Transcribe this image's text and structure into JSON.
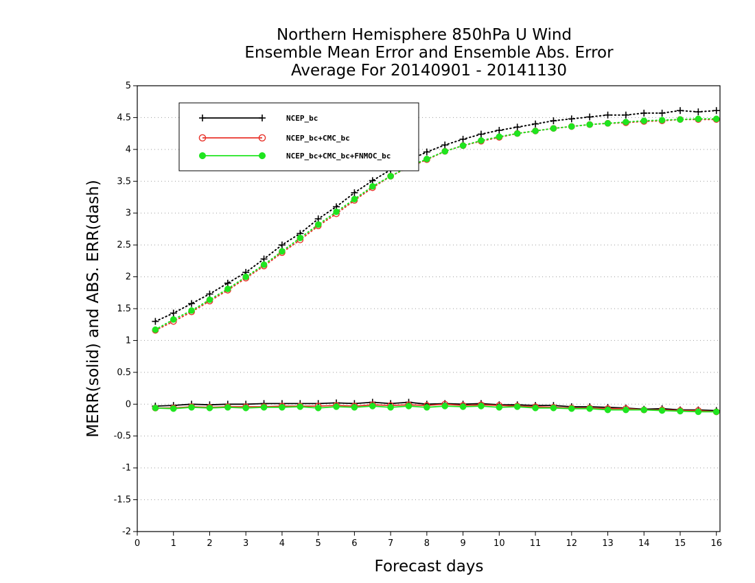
{
  "chart_data": {
    "type": "line",
    "title": [
      "Northern Hemisphere 850hPa U Wind",
      "Ensemble Mean Error and Ensemble Abs. Error",
      "Average For 20140901 - 20141130"
    ],
    "xlabel": "Forecast days",
    "ylabel": "MERR(solid) and ABS. ERR(dash)",
    "xlim": [
      0,
      16.1
    ],
    "ylim": [
      -2,
      5
    ],
    "xticks": [
      0,
      1,
      2,
      3,
      4,
      5,
      6,
      7,
      8,
      9,
      10,
      11,
      12,
      13,
      14,
      15,
      16
    ],
    "yticks": [
      -2,
      -1.5,
      -1,
      -0.5,
      0,
      0.5,
      1,
      1.5,
      2,
      2.5,
      3,
      3.5,
      4,
      4.5,
      5
    ],
    "ytick_labels": [
      "-2",
      "-1.5",
      "-1",
      "-0.5",
      "0",
      "0.5",
      "1",
      "1.5",
      "2",
      "2.5",
      "3",
      "3.5",
      "4",
      "4.5",
      "5"
    ],
    "grid": "horizontal dotted",
    "legend_placement": "top-left",
    "x": [
      0.5,
      1.0,
      1.5,
      2.0,
      2.5,
      3.0,
      3.5,
      4.0,
      4.5,
      5.0,
      5.5,
      6.0,
      6.5,
      7.0,
      7.5,
      8.0,
      8.5,
      9.0,
      9.5,
      10.0,
      10.5,
      11.0,
      11.5,
      12.0,
      12.5,
      13.0,
      13.5,
      14.0,
      14.5,
      15.0,
      15.5,
      16.0
    ],
    "series": [
      {
        "name": "NCEP_bc",
        "color": "#000000",
        "marker": "plus",
        "abs_err": [
          1.3,
          1.43,
          1.58,
          1.73,
          1.9,
          2.07,
          2.28,
          2.5,
          2.68,
          2.91,
          3.1,
          3.32,
          3.51,
          3.68,
          3.83,
          3.96,
          4.07,
          4.16,
          4.24,
          4.3,
          4.35,
          4.4,
          4.45,
          4.48,
          4.51,
          4.54,
          4.54,
          4.57,
          4.57,
          4.61,
          4.59,
          4.61
        ],
        "mean_err": [
          -0.03,
          -0.02,
          0.0,
          -0.01,
          0.0,
          0.0,
          0.01,
          0.01,
          0.01,
          0.01,
          0.02,
          0.01,
          0.03,
          0.01,
          0.03,
          0.0,
          0.01,
          0.0,
          0.01,
          -0.01,
          -0.01,
          -0.02,
          -0.02,
          -0.04,
          -0.04,
          -0.05,
          -0.06,
          -0.08,
          -0.07,
          -0.09,
          -0.09,
          -0.1
        ]
      },
      {
        "name": "NCEP_bc+CMC_bc",
        "color": "#e8322a",
        "marker": "open-circle",
        "abs_err": [
          1.16,
          1.3,
          1.45,
          1.62,
          1.79,
          1.98,
          2.17,
          2.38,
          2.58,
          2.8,
          2.99,
          3.2,
          3.4,
          3.58,
          3.72,
          3.84,
          3.97,
          4.06,
          4.13,
          4.19,
          4.25,
          4.29,
          4.33,
          4.36,
          4.39,
          4.41,
          4.42,
          4.44,
          4.45,
          4.47,
          4.47,
          4.47
        ],
        "mean_err": [
          -0.06,
          -0.06,
          -0.04,
          -0.05,
          -0.04,
          -0.04,
          -0.04,
          -0.03,
          -0.03,
          -0.03,
          -0.02,
          -0.03,
          -0.01,
          -0.02,
          -0.01,
          -0.02,
          0.0,
          -0.02,
          -0.01,
          -0.02,
          -0.03,
          -0.04,
          -0.05,
          -0.06,
          -0.06,
          -0.07,
          -0.07,
          -0.09,
          -0.09,
          -0.1,
          -0.1,
          -0.12
        ]
      },
      {
        "name": "NCEP_bc+CMC_bc+FNMOC_bc",
        "color": "#1fe51f",
        "marker": "filled-circle",
        "abs_err": [
          1.17,
          1.33,
          1.47,
          1.64,
          1.81,
          2.0,
          2.19,
          2.4,
          2.61,
          2.82,
          3.02,
          3.22,
          3.42,
          3.58,
          3.73,
          3.85,
          3.97,
          4.06,
          4.14,
          4.2,
          4.25,
          4.29,
          4.33,
          4.36,
          4.39,
          4.41,
          4.43,
          4.45,
          4.46,
          4.47,
          4.48,
          4.48
        ],
        "mean_err": [
          -0.06,
          -0.07,
          -0.05,
          -0.06,
          -0.05,
          -0.06,
          -0.05,
          -0.05,
          -0.04,
          -0.06,
          -0.04,
          -0.05,
          -0.03,
          -0.05,
          -0.03,
          -0.05,
          -0.03,
          -0.04,
          -0.03,
          -0.05,
          -0.04,
          -0.06,
          -0.06,
          -0.07,
          -0.07,
          -0.09,
          -0.09,
          -0.09,
          -0.1,
          -0.11,
          -0.12,
          -0.12
        ]
      }
    ]
  }
}
